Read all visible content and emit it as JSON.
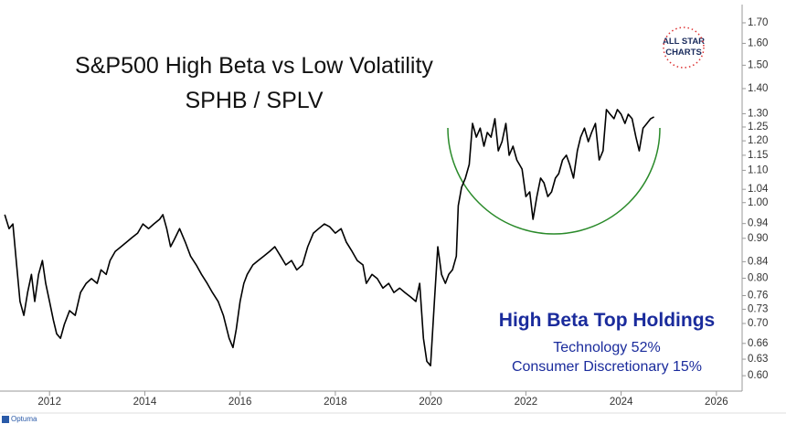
{
  "chart_data": {
    "type": "line",
    "title": "S&P500 High Beta vs Low Volatility",
    "subtitle": "SPHB / SPLV",
    "annotations": {
      "heading": "High Beta Top Holdings",
      "lines": [
        "Technology 52%",
        "Consumer Discretionary 15%"
      ]
    },
    "logo": {
      "top": "ALL STAR",
      "bottom": "CHARTS"
    },
    "footer": "Optuma",
    "log_scale": true,
    "grid": false,
    "xlim": [
      2010.96,
      2026.54
    ],
    "xticks": [
      2012,
      2014,
      2016,
      2018,
      2020,
      2022,
      2024,
      2026
    ],
    "ylim": [
      0.578,
      1.77
    ],
    "yticks": [
      {
        "value": 0.6,
        "label": "0.60"
      },
      0.63,
      0.66,
      {
        "value": 0.7,
        "label": "0.70"
      },
      0.73,
      0.76,
      {
        "value": 0.8,
        "label": "0.80"
      },
      0.84,
      {
        "value": 0.9,
        "label": "0.90"
      },
      0.94,
      {
        "value": 1,
        "label": "1.00"
      },
      1.04,
      {
        "value": 1.1,
        "label": "1.10"
      },
      1.15,
      {
        "value": 1.2,
        "label": "1.20"
      },
      1.25,
      {
        "value": 1.3,
        "label": "1.30"
      },
      {
        "value": 1.4,
        "label": "1.40"
      },
      {
        "value": 1.5,
        "label": "1.50"
      },
      {
        "value": 1.6,
        "label": "1.60"
      },
      {
        "value": 1.7,
        "label": "1.70"
      }
    ],
    "x": [
      2011.06,
      2011.15,
      2011.23,
      2011.31,
      2011.38,
      2011.46,
      2011.54,
      2011.62,
      2011.69,
      2011.77,
      2011.85,
      2011.92,
      2012.0,
      2012.08,
      2012.15,
      2012.23,
      2012.31,
      2012.42,
      2012.54,
      2012.65,
      2012.77,
      2012.88,
      2013.0,
      2013.08,
      2013.19,
      2013.27,
      2013.38,
      2013.5,
      2013.62,
      2013.73,
      2013.85,
      2013.96,
      2014.08,
      2014.19,
      2014.31,
      2014.38,
      2014.46,
      2014.54,
      2014.62,
      2014.73,
      2014.85,
      2014.96,
      2015.08,
      2015.19,
      2015.31,
      2015.42,
      2015.54,
      2015.65,
      2015.77,
      2015.85,
      2015.92,
      2016.0,
      2016.08,
      2016.15,
      2016.27,
      2016.38,
      2016.5,
      2016.62,
      2016.73,
      2016.85,
      2016.96,
      2017.08,
      2017.19,
      2017.31,
      2017.42,
      2017.54,
      2017.65,
      2017.77,
      2017.88,
      2018.0,
      2018.12,
      2018.23,
      2018.35,
      2018.46,
      2018.58,
      2018.65,
      2018.77,
      2018.88,
      2019.0,
      2019.12,
      2019.23,
      2019.35,
      2019.46,
      2019.58,
      2019.69,
      2019.77,
      2019.85,
      2019.92,
      2020.0,
      2020.08,
      2020.15,
      2020.23,
      2020.31,
      2020.38,
      2020.46,
      2020.54,
      2020.58,
      2020.65,
      2020.73,
      2020.81,
      2020.88,
      2020.96,
      2021.04,
      2021.12,
      2021.19,
      2021.27,
      2021.35,
      2021.42,
      2021.5,
      2021.58,
      2021.65,
      2021.73,
      2021.81,
      2021.92,
      2022.0,
      2022.08,
      2022.15,
      2022.23,
      2022.31,
      2022.38,
      2022.46,
      2022.54,
      2022.62,
      2022.69,
      2022.77,
      2022.85,
      2022.92,
      2023.0,
      2023.08,
      2023.15,
      2023.23,
      2023.31,
      2023.38,
      2023.46,
      2023.54,
      2023.62,
      2023.69,
      2023.77,
      2023.85,
      2023.92,
      2024.0,
      2024.08,
      2024.15,
      2024.23,
      2024.31,
      2024.38,
      2024.46,
      2024.54,
      2024.62,
      2024.69
    ],
    "series": [
      {
        "name": "SPHB / SPLV",
        "color": "#000000",
        "values": [
          0.965,
          0.926,
          0.939,
          0.832,
          0.747,
          0.717,
          0.767,
          0.809,
          0.747,
          0.809,
          0.843,
          0.788,
          0.747,
          0.707,
          0.679,
          0.67,
          0.698,
          0.727,
          0.717,
          0.767,
          0.788,
          0.799,
          0.788,
          0.82,
          0.809,
          0.843,
          0.866,
          0.878,
          0.89,
          0.902,
          0.914,
          0.939,
          0.926,
          0.939,
          0.952,
          0.965,
          0.926,
          0.878,
          0.897,
          0.926,
          0.89,
          0.854,
          0.832,
          0.809,
          0.788,
          0.767,
          0.747,
          0.717,
          0.67,
          0.652,
          0.688,
          0.747,
          0.788,
          0.809,
          0.832,
          0.843,
          0.854,
          0.866,
          0.878,
          0.854,
          0.832,
          0.843,
          0.82,
          0.832,
          0.878,
          0.914,
          0.926,
          0.939,
          0.931,
          0.914,
          0.926,
          0.89,
          0.866,
          0.843,
          0.832,
          0.788,
          0.809,
          0.799,
          0.777,
          0.788,
          0.767,
          0.777,
          0.767,
          0.757,
          0.747,
          0.788,
          0.67,
          0.626,
          0.618,
          0.747,
          0.878,
          0.809,
          0.788,
          0.809,
          0.82,
          0.854,
          0.991,
          1.046,
          1.075,
          1.119,
          1.263,
          1.213,
          1.246,
          1.181,
          1.23,
          1.213,
          1.281,
          1.165,
          1.197,
          1.263,
          1.15,
          1.181,
          1.134,
          1.104,
          1.018,
          1.032,
          0.952,
          1.018,
          1.075,
          1.06,
          1.018,
          1.032,
          1.075,
          1.089,
          1.134,
          1.15,
          1.119,
          1.075,
          1.165,
          1.213,
          1.246,
          1.197,
          1.23,
          1.263,
          1.134,
          1.165,
          1.316,
          1.298,
          1.281,
          1.316,
          1.298,
          1.263,
          1.298,
          1.281,
          1.213,
          1.165,
          1.246,
          1.263,
          1.281,
          1.288
        ]
      }
    ]
  }
}
